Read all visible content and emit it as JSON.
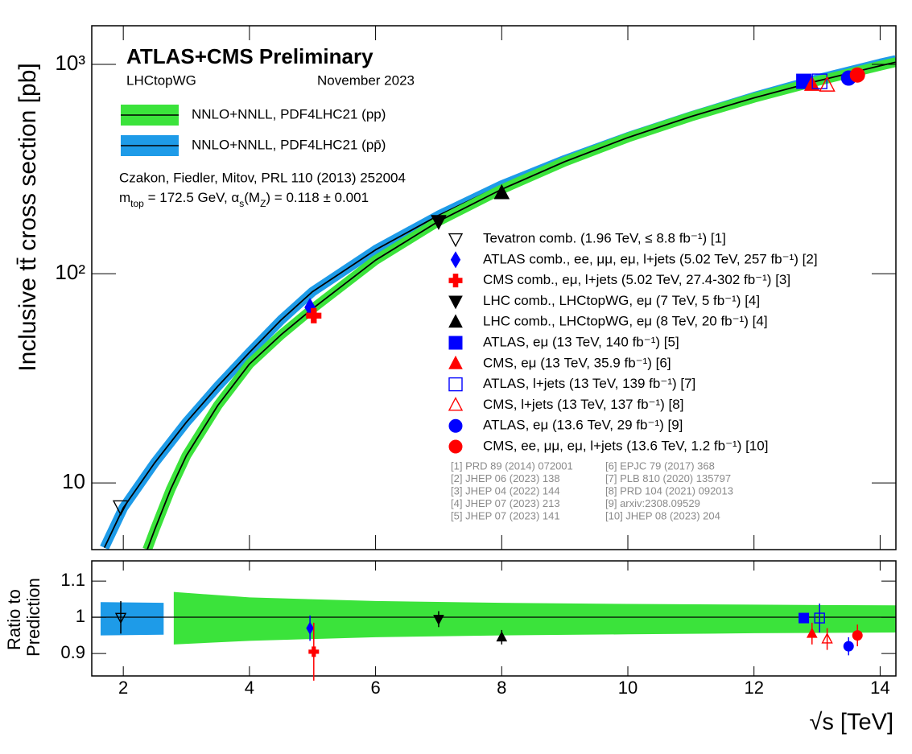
{
  "chart_data": {
    "type": "scatter",
    "log_y": true,
    "title": "ATLAS+CMS  Preliminary",
    "group": "LHCtopWG",
    "date": "November 2023",
    "ylabel": "Inclusive tt̄ cross section [pb]",
    "xlabel": "√s [TeV]",
    "annotations": [
      "Czakon, Fiedler, Mitov, PRL 110 (2013) 252004"
    ],
    "params": [
      "m",
      "top",
      " = 172.5 GeV, α",
      "s",
      "(M",
      "Z",
      ") = 0.118 ± 0.001"
    ],
    "xlim": [
      1.5,
      14.25
    ],
    "xticks": [
      2,
      4,
      6,
      8,
      10,
      12,
      14
    ],
    "ylim": [
      4.8,
      1530
    ],
    "yticks": [
      10,
      {
        "value": 100,
        "label": "10²"
      },
      {
        "value": 1000,
        "label": "10³"
      }
    ],
    "theory": [
      {
        "name": "NNLO+NNLL, PDF4LHC21 (pp)",
        "color": "#3be33b",
        "x": [
          2.38,
          2.5,
          2.75,
          3,
          3.5,
          4,
          4.5,
          5,
          6,
          7,
          8,
          9,
          10,
          11,
          12,
          13,
          14,
          14.25
        ],
        "values": [
          4.8,
          6.0,
          9.3,
          13.5,
          23.5,
          37,
          51,
          68,
          116,
          178,
          253,
          343,
          447,
          563,
          692,
          832,
          985,
          1025
        ],
        "band_x": [
          2.8,
          4,
          6,
          8,
          10,
          12,
          14.25
        ],
        "band_high": [
          1.07,
          1.055,
          1.045,
          1.04,
          1.037,
          1.035,
          1.033
        ],
        "band_low": [
          0.925,
          0.935,
          0.945,
          0.95,
          0.953,
          0.956,
          0.958
        ]
      },
      {
        "name": "NNLO+NNLL, PDF4LHC21 (pp̄)",
        "color": "#1e9be8",
        "x": [
          1.7,
          2,
          2.5,
          3,
          3.5,
          4,
          4.5,
          5,
          6,
          7,
          8,
          9,
          10,
          11,
          12,
          13,
          14,
          14.25
        ],
        "values": [
          4.9,
          7.6,
          12.5,
          19.5,
          29,
          42,
          60,
          82,
          130,
          190,
          265,
          350,
          450,
          565,
          700,
          850,
          1010,
          1050
        ],
        "band_x": [
          1.64,
          2.64
        ],
        "band_high": [
          1.042,
          1.04
        ],
        "band_low": [
          0.95,
          0.952
        ]
      }
    ],
    "series": [
      {
        "name": "Tevatron comb. (1.96 TeV, ≤ 8.8 fb⁻¹) [1]",
        "color": "#000000",
        "marker": "tri-down",
        "filled": false,
        "x": [
          1.96
        ],
        "values": [
          7.7
        ],
        "ratio": [
          1.0
        ],
        "ratio_errors": [
          0.045
        ]
      },
      {
        "name": "ATLAS comb., ee, μμ, eμ, l+jets (5.02 TeV, 257 fb⁻¹) [2]",
        "color": "#0000ff",
        "marker": "diamond",
        "filled": true,
        "x": [
          4.96
        ],
        "values": [
          69
        ],
        "ratio": [
          0.97
        ],
        "ratio_errors": [
          0.035
        ]
      },
      {
        "name": "CMS comb., eμ, l+jets (5.02 TeV, 27.4-302 fb⁻¹) [3]",
        "color": "#ff0000",
        "marker": "cross",
        "filled": true,
        "x": [
          5.02
        ],
        "values": [
          63
        ],
        "ratio": [
          0.905
        ],
        "ratio_errors": [
          0.08
        ]
      },
      {
        "name": "LHC comb., LHCtopWG, eμ (7 TeV, 5 fb⁻¹) [4]",
        "color": "#000000",
        "marker": "tri-down",
        "filled": true,
        "x": [
          7
        ],
        "values": [
          178
        ],
        "ratio": [
          0.995
        ],
        "ratio_errors": [
          0.022
        ]
      },
      {
        "name": "LHC comb., LHCtopWG, eμ (8 TeV, 20 fb⁻¹) [4]",
        "color": "#000000",
        "marker": "tri-up",
        "filled": true,
        "x": [
          8
        ],
        "values": [
          243
        ],
        "ratio": [
          0.945
        ],
        "ratio_errors": [
          0.02
        ]
      },
      {
        "name": "ATLAS, eμ (13 TeV, 140 fb⁻¹) [5]",
        "color": "#0000ff",
        "marker": "square",
        "filled": true,
        "x": [
          12.79
        ],
        "values": [
          830
        ],
        "ratio": [
          0.998
        ],
        "ratio_errors": [
          0.012
        ]
      },
      {
        "name": "CMS, eμ (13 TeV, 35.9 fb⁻¹) [6]",
        "color": "#ff0000",
        "marker": "tri-up",
        "filled": true,
        "x": [
          12.92
        ],
        "values": [
          800
        ],
        "ratio": [
          0.955
        ],
        "ratio_errors": [
          0.03
        ]
      },
      {
        "name": "ATLAS, l+jets (13 TeV, 139 fb⁻¹) [7]",
        "color": "#0000ff",
        "marker": "square",
        "filled": false,
        "x": [
          13.04
        ],
        "values": [
          830
        ],
        "ratio": [
          0.998
        ],
        "ratio_errors": [
          0.04
        ]
      },
      {
        "name": "CMS, l+jets (13 TeV, 137 fb⁻¹) [8]",
        "color": "#ff0000",
        "marker": "tri-up",
        "filled": false,
        "x": [
          13.16
        ],
        "values": [
          795
        ],
        "ratio": [
          0.94
        ],
        "ratio_errors": [
          0.03
        ]
      },
      {
        "name": "ATLAS, eμ (13.6 TeV, 29 fb⁻¹) [9]",
        "color": "#0000ff",
        "marker": "circle",
        "filled": true,
        "x": [
          13.5
        ],
        "values": [
          860
        ],
        "ratio": [
          0.92
        ],
        "ratio_errors": [
          0.025
        ]
      },
      {
        "name": "CMS, ee, μμ, eμ, l+jets (13.6 TeV, 1.2 fb⁻¹) [10]",
        "color": "#ff0000",
        "marker": "circle",
        "filled": true,
        "x": [
          13.64
        ],
        "values": [
          890
        ],
        "ratio": [
          0.95
        ],
        "ratio_errors": [
          0.03
        ]
      }
    ],
    "references": [
      "[1] PRD 89 (2014) 072001",
      "[2] JHEP 06 (2023) 138",
      "[3] JHEP 04 (2022) 144",
      "[4] JHEP 07 (2023) 213",
      "[5] JHEP 07 (2023) 141",
      "[6] EPJC 79 (2017) 368",
      "[7] PLB 810 (2020) 135797",
      "[8] PRD 104 (2021) 092013",
      "[9] arxiv:2308.09529",
      "[10] JHEP 08 (2023) 204"
    ],
    "ratio_panel": {
      "ylabel": [
        "Ratio to",
        "Prediction"
      ],
      "ylim": [
        0.838,
        1.156
      ],
      "yticks": [
        0.9,
        1,
        1.1
      ]
    }
  }
}
